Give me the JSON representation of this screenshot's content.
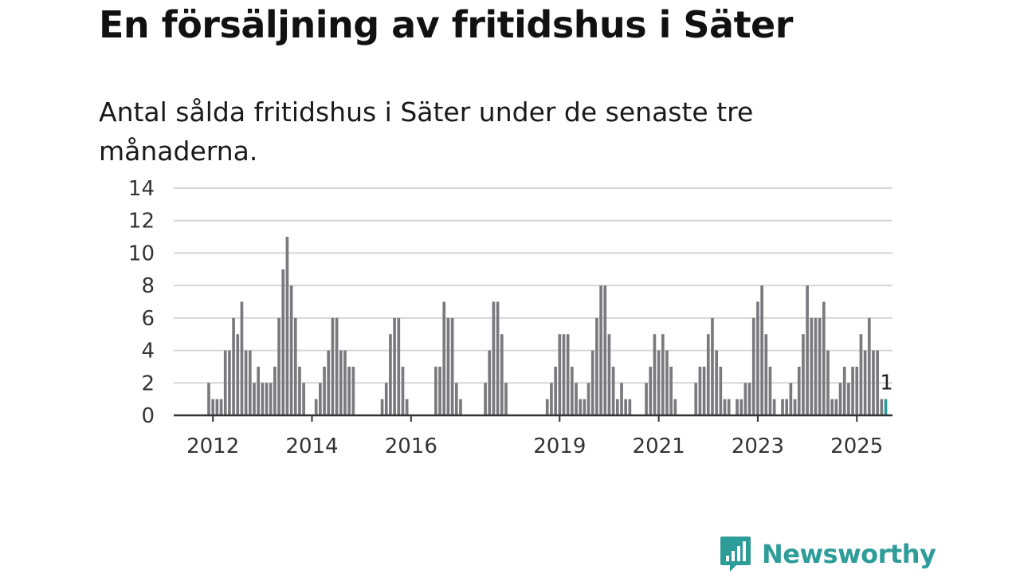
{
  "header": {
    "title": "En försäljning av fritidshus i Säter",
    "subtitle": "Antal sålda fritidshus i Säter under de senaste tre månaderna."
  },
  "branding": {
    "name": "Newsworthy",
    "color": "#2e9c99",
    "icon": "bar-chart-speech-bubble-icon"
  },
  "colors": {
    "bar": "#7a7a7e",
    "highlight": "#2a9d9a",
    "grid": "#d6d6d6",
    "axis": "#333333"
  },
  "chart_data": {
    "type": "bar",
    "title": "",
    "xlabel": "",
    "ylabel": "",
    "ylim": [
      0,
      14
    ],
    "yticks": [
      0,
      2,
      4,
      6,
      8,
      10,
      12,
      14
    ],
    "grid": true,
    "x_start": "2011-12",
    "x_tick_labels": [
      {
        "label": "2012",
        "x": "2012-01"
      },
      {
        "label": "2014",
        "x": "2014-01"
      },
      {
        "label": "2016",
        "x": "2016-01"
      },
      {
        "label": "2019",
        "x": "2019-01"
      },
      {
        "label": "2021",
        "x": "2021-01"
      },
      {
        "label": "2023",
        "x": "2023-01"
      },
      {
        "label": "2025",
        "x": "2025-01"
      }
    ],
    "values": [
      2,
      1,
      1,
      1,
      4,
      4,
      6,
      5,
      7,
      4,
      4,
      2,
      3,
      2,
      2,
      2,
      3,
      6,
      9,
      11,
      8,
      6,
      3,
      2,
      0,
      0,
      1,
      2,
      3,
      4,
      6,
      6,
      4,
      4,
      3,
      3,
      0,
      0,
      0,
      0,
      0,
      0,
      1,
      2,
      5,
      6,
      6,
      3,
      1,
      0,
      0,
      0,
      0,
      0,
      0,
      3,
      3,
      7,
      6,
      6,
      2,
      1,
      0,
      0,
      0,
      0,
      0,
      2,
      4,
      7,
      7,
      5,
      2,
      0,
      0,
      0,
      0,
      0,
      0,
      0,
      0,
      0,
      1,
      2,
      3,
      5,
      5,
      5,
      3,
      2,
      1,
      1,
      2,
      4,
      6,
      8,
      8,
      5,
      3,
      1,
      2,
      1,
      1,
      0,
      0,
      0,
      2,
      3,
      5,
      4,
      5,
      4,
      3,
      1,
      0,
      0,
      0,
      0,
      2,
      3,
      3,
      5,
      6,
      4,
      3,
      1,
      1,
      0,
      1,
      1,
      2,
      2,
      6,
      7,
      8,
      5,
      3,
      1,
      0,
      1,
      1,
      2,
      1,
      3,
      5,
      8,
      6,
      6,
      6,
      7,
      4,
      1,
      1,
      2,
      3,
      2,
      3,
      3,
      5,
      4,
      6,
      4,
      4,
      1,
      1
    ],
    "highlight_last": true,
    "annotation": {
      "label": "1",
      "value": 1
    }
  }
}
